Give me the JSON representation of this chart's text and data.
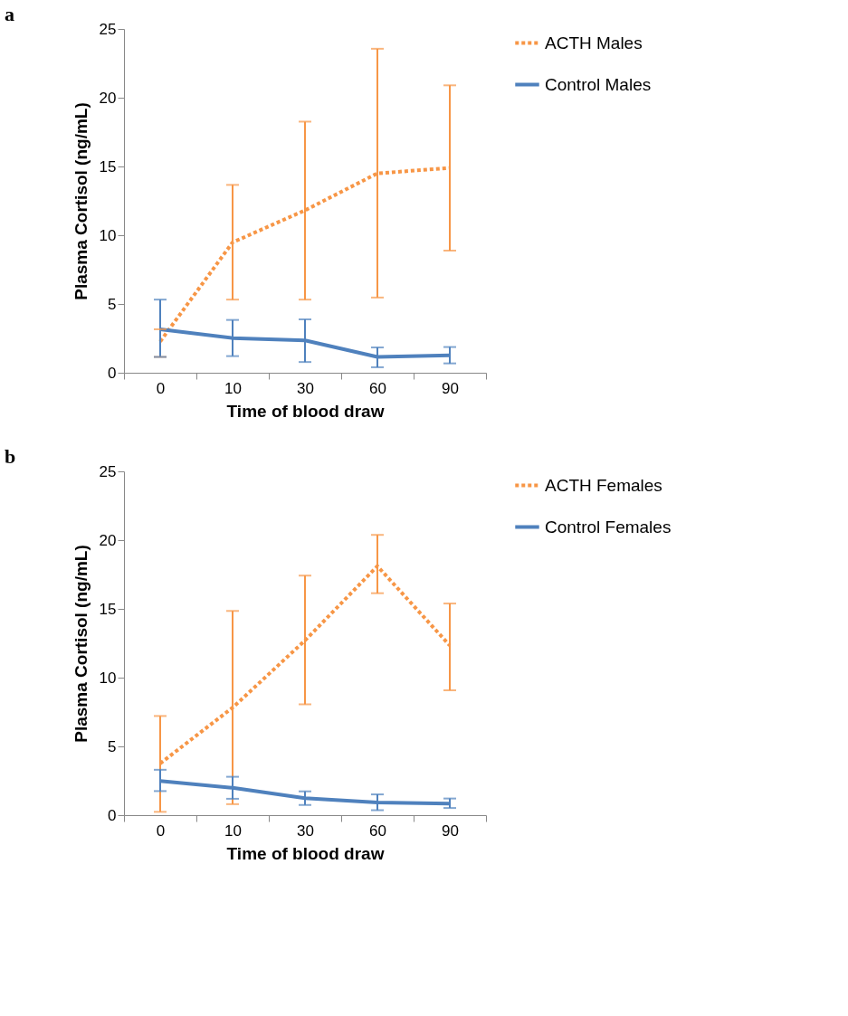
{
  "chart_data": [
    {
      "type": "line",
      "annotations": [
        "a"
      ],
      "xlabel": "Time of blood draw",
      "ylabel": "Plasma Cortisol (ng/mL)",
      "categories": [
        "0",
        "10",
        "30",
        "60",
        "90"
      ],
      "ylim": [
        0,
        25
      ],
      "yticks": [
        0,
        5,
        10,
        15,
        20,
        25
      ],
      "grid": false,
      "legend": "right",
      "series": [
        {
          "name": "ACTH Males",
          "color": "#f79646",
          "line_style": "dotted",
          "values": [
            2.27,
            9.48,
            11.81,
            14.5,
            14.89
          ],
          "errors": [
            [
              1.15,
              3.16
            ],
            [
              5.32,
              13.66
            ],
            [
              5.32,
              18.26
            ],
            [
              5.47,
              23.56
            ],
            [
              8.88,
              20.9
            ]
          ]
        },
        {
          "name": "Control Males",
          "color": "#4f81bd",
          "line_style": "solid",
          "values": [
            3.16,
            2.52,
            2.35,
            1.15,
            1.27
          ],
          "errors": [
            [
              1.15,
              5.32
            ],
            [
              1.21,
              3.84
            ],
            [
              0.78,
              3.88
            ],
            [
              0.4,
              1.84
            ],
            [
              0.68,
              1.87
            ]
          ]
        }
      ]
    },
    {
      "type": "line",
      "annotations": [
        "b"
      ],
      "xlabel": "Time of blood draw",
      "ylabel": "Plasma Cortisol (ng/mL)",
      "categories": [
        "0",
        "10",
        "30",
        "60",
        "90"
      ],
      "ylim": [
        0,
        25
      ],
      "yticks": [
        0,
        5,
        10,
        15,
        20,
        25
      ],
      "grid": false,
      "legend": "right",
      "series": [
        {
          "name": "ACTH Females",
          "color": "#f79646",
          "line_style": "dotted",
          "values": [
            3.76,
            7.82,
            12.7,
            18.11,
            12.34
          ],
          "errors": [
            [
              0.24,
              7.21
            ],
            [
              0.8,
              14.85
            ],
            [
              8.06,
              17.42
            ],
            [
              16.14,
              20.38
            ],
            [
              9.08,
              15.39
            ]
          ]
        },
        {
          "name": "Control Females",
          "color": "#4f81bd",
          "line_style": "solid",
          "values": [
            2.49,
            1.99,
            1.23,
            0.92,
            0.84
          ],
          "errors": [
            [
              1.75,
              3.3
            ],
            [
              1.19,
              2.79
            ],
            [
              0.74,
              1.73
            ],
            [
              0.36,
              1.51
            ],
            [
              0.52,
              1.21
            ]
          ]
        }
      ]
    }
  ]
}
